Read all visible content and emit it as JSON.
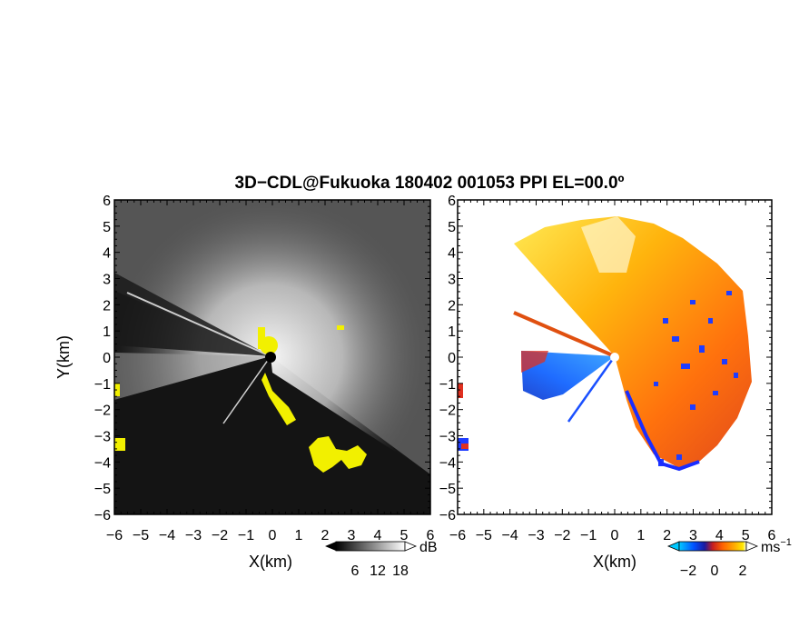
{
  "title": "3D−CDL@Fukuoka 180402 001053 PPI EL=00.0º",
  "chart_data": [
    {
      "type": "heatmap",
      "panel": "reflectivity",
      "xlabel": "X(km)",
      "ylabel": "Y(km)",
      "xlim": [
        -6,
        6
      ],
      "ylim": [
        -6,
        6
      ],
      "x_ticks": [
        "−6",
        "−5",
        "−4",
        "−3",
        "−2",
        "−1",
        "0",
        "1",
        "2",
        "3",
        "4",
        "5",
        "6"
      ],
      "y_ticks": [
        "6",
        "5",
        "4",
        "3",
        "2",
        "1",
        "0",
        "−1",
        "−2",
        "−3",
        "−4",
        "−5",
        "−6"
      ],
      "colorbar": {
        "unit": "dB",
        "ticks": [
          "6",
          "12",
          "18"
        ],
        "colors": [
          "#000000",
          "#404040",
          "#808080",
          "#c0c0c0",
          "#ffffff"
        ]
      },
      "background_color": "#141414",
      "highlight_color": "#f2f000"
    },
    {
      "type": "heatmap",
      "panel": "doppler-velocity",
      "xlabel": "X(km)",
      "xlim": [
        -6,
        6
      ],
      "ylim": [
        -6,
        6
      ],
      "x_ticks": [
        "−6",
        "−5",
        "−4",
        "−3",
        "−2",
        "−1",
        "0",
        "1",
        "2",
        "3",
        "4",
        "5",
        "6"
      ],
      "y_ticks": [
        "6",
        "5",
        "4",
        "3",
        "2",
        "1",
        "0",
        "−1",
        "−2",
        "−3",
        "−4",
        "−5",
        "−6"
      ],
      "colorbar": {
        "unit": "ms",
        "unit_exp": "−1",
        "ticks": [
          "−2",
          "0",
          "2"
        ],
        "colors": [
          "#00c8ff",
          "#0050ff",
          "#1a1aa0",
          "#c81e1e",
          "#ff6400",
          "#ffaa00",
          "#ffe800",
          "#ffffff"
        ]
      }
    }
  ]
}
